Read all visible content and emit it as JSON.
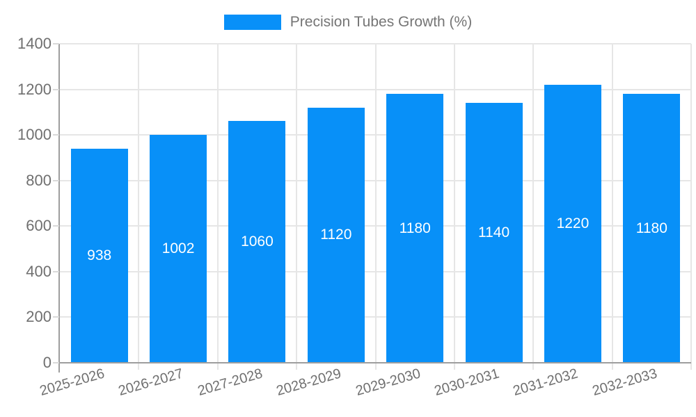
{
  "chart_data": {
    "type": "bar",
    "title": "Precision Tubes Growth (%)",
    "series_name": "Precision Tubes Growth (%)",
    "categories": [
      "2025-2026",
      "2026-2027",
      "2027-2028",
      "2028-2029",
      "2029-2030",
      "2030-2031",
      "2031-2032",
      "2032-2033"
    ],
    "values": [
      938,
      1002,
      1060,
      1120,
      1180,
      1140,
      1220,
      1180
    ],
    "xlabel": "",
    "ylabel": "",
    "ylim": [
      0,
      1400
    ],
    "yticks": [
      0,
      200,
      400,
      600,
      800,
      1000,
      1200,
      1400
    ],
    "grid": true,
    "legend_position": "top",
    "bar_color": "#0890f8",
    "value_label_color": "#ffffff",
    "axis_label_color": "#6f6f6f",
    "title_color": "#757575",
    "gridline_color": "#e6e6e6",
    "axis_line_color": "#9e9e9e"
  }
}
